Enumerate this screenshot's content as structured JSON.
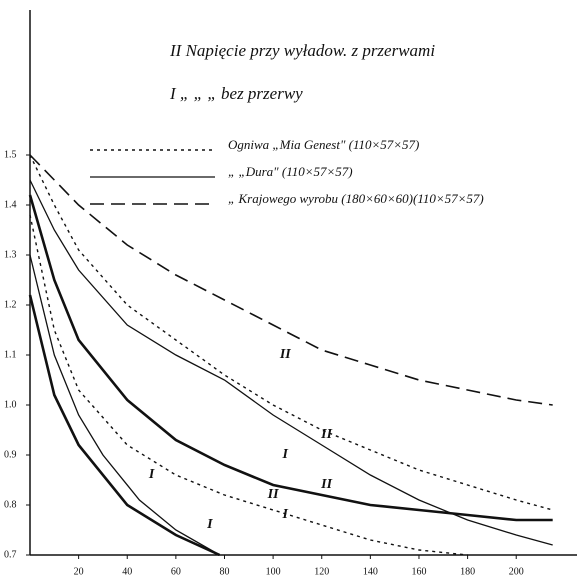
{
  "chart_data": {
    "type": "line",
    "title": "II Napięcie przy wyładow. z przerwami",
    "subtitle": "I „ „ „ bez przerwy",
    "legend": [
      {
        "label": "Ogniwa „Mia Genest\" (110×57×57)",
        "style": "dotted"
      },
      {
        "label": "„ „Dura\" (110×57×57)",
        "style": "solid"
      },
      {
        "label": "„ Krajowego wyrobu (180×60×60)(110×57×57)",
        "style": "dashed"
      }
    ],
    "xlim": [
      0,
      225
    ],
    "ylim": [
      0.7,
      1.79
    ],
    "xticks": [
      20,
      40,
      60,
      80,
      100,
      120,
      140,
      160,
      180,
      200
    ],
    "yticks": [
      0.7,
      0.8,
      0.9,
      {
        "value": 1,
        "label": "1.0"
      },
      1.1,
      1.2,
      1.3,
      1.4,
      1.5
    ],
    "color": "#111111",
    "series": [
      {
        "style": "dashed",
        "x": [
          0,
          10,
          20,
          40,
          60,
          80,
          100,
          120,
          140,
          160,
          180,
          200,
          215
        ],
        "values": [
          1.5,
          1.45,
          1.4,
          1.32,
          1.26,
          1.21,
          1.16,
          1.11,
          1.08,
          1.05,
          1.03,
          1.01,
          1.0
        ]
      },
      {
        "style": "dotted",
        "x": [
          0,
          10,
          20,
          40,
          60,
          80,
          100,
          120,
          140,
          160,
          180,
          200,
          215
        ],
        "values": [
          1.5,
          1.4,
          1.31,
          1.2,
          1.13,
          1.06,
          1.0,
          0.95,
          0.91,
          0.87,
          0.84,
          0.81,
          0.79
        ]
      },
      {
        "style": "solid",
        "x": [
          0,
          10,
          20,
          40,
          60,
          80,
          100,
          120,
          140,
          160,
          180,
          200,
          215
        ],
        "values": [
          1.45,
          1.35,
          1.27,
          1.16,
          1.1,
          1.05,
          0.98,
          0.92,
          0.86,
          0.81,
          0.77,
          0.74,
          0.72
        ]
      },
      {
        "style": "thick",
        "x": [
          0,
          10,
          20,
          40,
          60,
          80,
          100,
          120,
          140,
          160,
          180,
          200,
          215
        ],
        "values": [
          1.42,
          1.25,
          1.13,
          1.01,
          0.93,
          0.88,
          0.84,
          0.82,
          0.8,
          0.79,
          0.78,
          0.77,
          0.77
        ]
      },
      {
        "style": "dotted",
        "x": [
          0,
          10,
          20,
          40,
          60,
          80,
          100,
          120,
          140,
          160,
          180
        ],
        "values": [
          1.38,
          1.15,
          1.03,
          0.92,
          0.86,
          0.82,
          0.79,
          0.76,
          0.73,
          0.71,
          0.7
        ]
      },
      {
        "style": "solid",
        "x": [
          0,
          10,
          20,
          30,
          45,
          60,
          78
        ],
        "values": [
          1.3,
          1.1,
          0.98,
          0.9,
          0.81,
          0.75,
          0.7
        ]
      },
      {
        "style": "thick",
        "x": [
          0,
          10,
          20,
          40,
          60,
          78
        ],
        "values": [
          1.22,
          1.02,
          0.92,
          0.8,
          0.74,
          0.7
        ]
      }
    ],
    "annotations": [
      {
        "text": "II",
        "x": 105,
        "y": 1.1
      },
      {
        "text": "II",
        "x": 122,
        "y": 0.94
      },
      {
        "text": "I",
        "x": 105,
        "y": 0.9
      },
      {
        "text": "II",
        "x": 122,
        "y": 0.84
      },
      {
        "text": "II",
        "x": 100,
        "y": 0.82
      },
      {
        "text": "I",
        "x": 105,
        "y": 0.78
      },
      {
        "text": "I",
        "x": 50,
        "y": 0.86
      },
      {
        "text": "I",
        "x": 74,
        "y": 0.76
      }
    ]
  }
}
